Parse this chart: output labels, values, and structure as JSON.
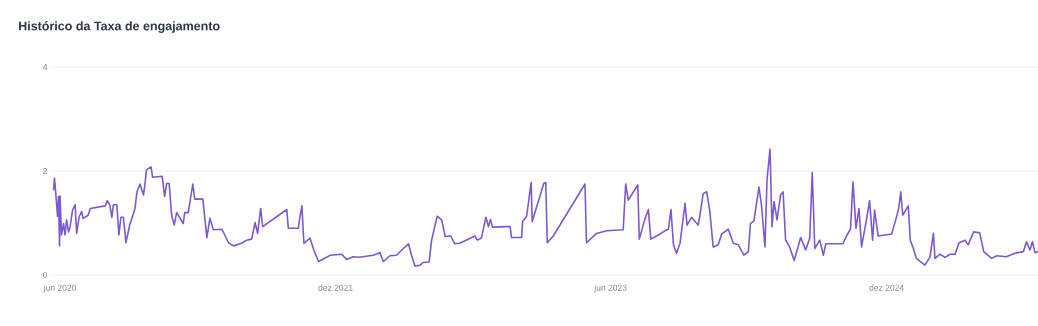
{
  "chart_data": {
    "type": "line",
    "title": "Histórico da Taxa de engajamento",
    "x": [
      "2020-05-19",
      "2020-05-21",
      "2020-05-24",
      "2020-05-27",
      "2020-05-29",
      "2020-05-31",
      "2020-06-01",
      "2020-06-04",
      "2020-06-08",
      "2020-06-11",
      "2020-06-14",
      "2020-06-18",
      "2020-06-21",
      "2020-06-26",
      "2020-07-01",
      "2020-07-04",
      "2020-07-09",
      "2020-07-14",
      "2020-07-17",
      "2020-07-27",
      "2020-07-31",
      "2020-08-30",
      "2020-09-03",
      "2020-09-08",
      "2020-09-12",
      "2020-09-15",
      "2020-09-22",
      "2020-09-26",
      "2020-09-30",
      "2020-10-05",
      "2020-10-10",
      "2020-10-18",
      "2020-10-22",
      "2020-10-28",
      "2020-11-01",
      "2020-11-07",
      "2020-11-14",
      "2020-11-17",
      "2020-11-20",
      "2020-11-29",
      "2020-12-02",
      "2020-12-21",
      "2020-12-26",
      "2020-12-30",
      "2021-01-04",
      "2021-01-09",
      "2021-01-14",
      "2021-01-19",
      "2021-02-01",
      "2021-02-04",
      "2021-02-11",
      "2021-02-20",
      "2021-02-24",
      "2021-03-12",
      "2021-03-20",
      "2021-03-26",
      "2021-04-02",
      "2021-04-19",
      "2021-05-02",
      "2021-05-12",
      "2021-05-28",
      "2021-06-07",
      "2021-06-17",
      "2021-06-24",
      "2021-06-29",
      "2021-07-05",
      "2021-07-09",
      "2021-08-26",
      "2021-08-29",
      "2021-09-18",
      "2021-09-21",
      "2021-09-25",
      "2021-09-29",
      "2021-10-11",
      "2021-10-19",
      "2021-10-28",
      "2021-11-13",
      "2021-11-20",
      "2021-12-13",
      "2021-12-23",
      "2022-01-05",
      "2022-01-17",
      "2022-02-14",
      "2022-02-27",
      "2022-03-06",
      "2022-03-19",
      "2022-04-01",
      "2022-04-15",
      "2022-04-25",
      "2022-05-01",
      "2022-05-08",
      "2022-05-18",
      "2022-05-24",
      "2022-06-05",
      "2022-06-10",
      "2022-06-21",
      "2022-06-30",
      "2022-07-07",
      "2022-07-18",
      "2022-07-26",
      "2022-08-05",
      "2022-09-04",
      "2022-09-09",
      "2022-09-17",
      "2022-09-26",
      "2022-10-01",
      "2022-10-05",
      "2022-10-09",
      "2022-11-06",
      "2022-11-13",
      "2022-11-16",
      "2022-12-06",
      "2022-12-08",
      "2022-12-16",
      "2022-12-25",
      "2022-12-27",
      "2023-01-10",
      "2023-01-19",
      "2023-01-23",
      "2023-01-26",
      "2023-02-07",
      "2023-04-11",
      "2023-04-14",
      "2023-05-04",
      "2023-05-24",
      "2023-06-26",
      "2023-07-01",
      "2023-07-06",
      "2023-07-25",
      "2023-07-28",
      "2023-08-08",
      "2023-08-15",
      "2023-08-20",
      "2023-09-04",
      "2023-09-17",
      "2023-09-24",
      "2023-09-29",
      "2023-10-04",
      "2023-10-10",
      "2023-10-17",
      "2023-10-27",
      "2023-10-31",
      "2023-11-09",
      "2023-11-22",
      "2023-11-25",
      "2023-12-02",
      "2023-12-09",
      "2023-12-15",
      "2023-12-22",
      "2024-01-01",
      "2024-01-08",
      "2024-01-21",
      "2024-01-31",
      "2024-02-10",
      "2024-02-21",
      "2024-03-01",
      "2024-03-05",
      "2024-03-12",
      "2024-03-22",
      "2024-03-27",
      "2024-04-03",
      "2024-04-07",
      "2024-04-13",
      "2024-04-17",
      "2024-04-21",
      "2024-04-27",
      "2024-05-04",
      "2024-05-09",
      "2024-05-14",
      "2024-05-22",
      "2024-05-31",
      "2024-06-06",
      "2024-06-13",
      "2024-06-23",
      "2024-07-01",
      "2024-07-06",
      "2024-07-11",
      "2024-07-21",
      "2024-07-28",
      "2024-08-02",
      "2024-09-05",
      "2024-09-12",
      "2024-09-20",
      "2024-09-25",
      "2024-10-01",
      "2024-10-07",
      "2024-10-12",
      "2024-10-22",
      "2024-10-28",
      "2024-11-03",
      "2024-11-07",
      "2024-11-14",
      "2024-12-11",
      "2024-12-19",
      "2024-12-25",
      "2024-12-29",
      "2025-01-02",
      "2025-01-13",
      "2025-01-17",
      "2025-01-23",
      "2025-01-29",
      "2025-02-15",
      "2025-02-25",
      "2025-03-04",
      "2025-03-07",
      "2025-03-17",
      "2025-03-27",
      "2025-04-06",
      "2025-04-16",
      "2025-04-24",
      "2025-05-06",
      "2025-05-12",
      "2025-05-23",
      "2025-06-04",
      "2025-06-12",
      "2025-06-28",
      "2025-07-08",
      "2025-07-27",
      "2025-08-13",
      "2025-08-30",
      "2025-09-05",
      "2025-09-12",
      "2025-09-17",
      "2025-09-22",
      "2025-09-28"
    ],
    "values": [
      1.63,
      1.86,
      1.51,
      1.13,
      1.51,
      0.56,
      1.52,
      0.77,
      0.99,
      0.77,
      1.06,
      0.83,
      0.93,
      1.25,
      1.35,
      0.8,
      1.12,
      1.22,
      1.09,
      1.15,
      1.28,
      1.33,
      1.43,
      1.35,
      1.11,
      1.35,
      1.35,
      0.77,
      1.11,
      1.11,
      0.62,
      0.98,
      1.09,
      1.28,
      1.6,
      1.75,
      1.54,
      1.76,
      2.02,
      2.08,
      1.88,
      1.9,
      1.51,
      1.76,
      1.76,
      1.15,
      0.96,
      1.2,
      0.99,
      1.2,
      1.2,
      1.75,
      1.46,
      1.46,
      0.72,
      1.09,
      0.87,
      0.88,
      0.62,
      0.56,
      0.61,
      0.67,
      0.69,
      1.01,
      0.8,
      1.28,
      0.93,
      1.26,
      0.9,
      0.9,
      1.11,
      1.33,
      0.61,
      0.71,
      0.47,
      0.26,
      0.34,
      0.38,
      0.4,
      0.3,
      0.35,
      0.34,
      0.38,
      0.43,
      0.26,
      0.37,
      0.38,
      0.51,
      0.6,
      0.38,
      0.17,
      0.19,
      0.24,
      0.25,
      0.67,
      1.13,
      1.06,
      0.74,
      0.75,
      0.6,
      0.61,
      0.75,
      0.67,
      0.71,
      1.11,
      0.93,
      1.07,
      0.92,
      0.93,
      0.93,
      0.72,
      0.72,
      1.03,
      1.13,
      1.78,
      1.03,
      1.47,
      1.76,
      1.78,
      0.62,
      0.75,
      1.75,
      0.62,
      0.8,
      0.85,
      0.87,
      1.75,
      1.44,
      1.73,
      0.69,
      1.07,
      1.26,
      0.69,
      0.77,
      0.85,
      0.88,
      1.26,
      0.58,
      0.42,
      0.61,
      1.38,
      0.96,
      1.11,
      0.96,
      1.11,
      1.56,
      1.6,
      1.25,
      0.54,
      0.58,
      0.79,
      0.88,
      0.61,
      0.58,
      0.38,
      0.45,
      0.99,
      1.04,
      1.69,
      1.35,
      0.54,
      1.83,
      2.42,
      0.93,
      1.41,
      1.06,
      1.54,
      1.6,
      0.67,
      0.54,
      0.28,
      0.48,
      0.72,
      0.48,
      0.71,
      1.97,
      0.51,
      0.67,
      0.38,
      0.6,
      0.6,
      0.75,
      0.88,
      1.79,
      0.9,
      1.28,
      0.54,
      1.07,
      1.43,
      0.67,
      1.25,
      0.75,
      0.79,
      1.06,
      1.28,
      1.6,
      1.15,
      1.33,
      0.67,
      0.51,
      0.32,
      0.19,
      0.34,
      0.8,
      0.32,
      0.4,
      0.34,
      0.4,
      0.4,
      0.62,
      0.67,
      0.58,
      0.83,
      0.81,
      0.45,
      0.32,
      0.37,
      0.35,
      0.42,
      0.45,
      0.64,
      0.48,
      0.64,
      0.43,
      0.45
    ],
    "color": "#7e57d2",
    "xlim": [
      "2020-05-18",
      "2025-09-28"
    ],
    "ylim": [
      0,
      4
    ],
    "xticks": [
      {
        "value": "2020-06-01",
        "label": "jun 2020"
      },
      {
        "value": "2021-12-01",
        "label": "dez 2021"
      },
      {
        "value": "2023-06-01",
        "label": "jun 2023"
      },
      {
        "value": "2024-12-01",
        "label": "dez 2024"
      }
    ],
    "yticks": [
      0,
      2,
      4
    ],
    "grid": "y"
  }
}
